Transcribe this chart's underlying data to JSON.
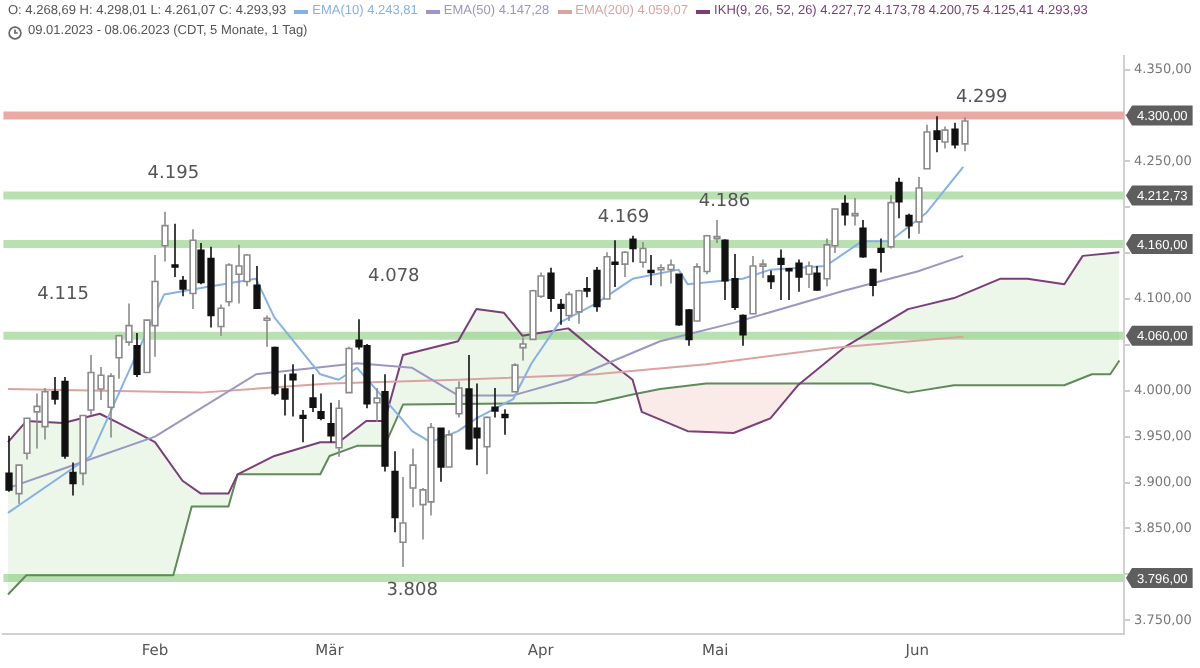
{
  "chart_data": {
    "type": "candlestick",
    "title": "O: 4.268,69 H: 4.298,01 L: 4.261,07 C: 4.293,93",
    "subtitle": "09.01.2023 - 08.06.2023  (CDT, 5 Monate, 1 Tag)",
    "categories": [
      null,
      null,
      null,
      null,
      null,
      null,
      null,
      null,
      null,
      null,
      null,
      null,
      null,
      null,
      null,
      null,
      "Feb",
      null,
      null,
      null,
      null,
      null,
      null,
      null,
      null,
      null,
      null,
      null,
      null,
      null,
      null,
      null,
      null,
      null,
      null,
      "Mär",
      null,
      null,
      null,
      null,
      null,
      null,
      null,
      null,
      null,
      null,
      null,
      null,
      null,
      null,
      null,
      null,
      null,
      null,
      null,
      null,
      null,
      null,
      "Apr",
      null,
      null,
      null,
      null,
      null,
      null,
      null,
      null,
      null,
      null,
      null,
      null,
      null,
      null,
      null,
      null,
      null,
      null,
      "Mai",
      null,
      null,
      null,
      null,
      null,
      null,
      null,
      null,
      null,
      null,
      null,
      null,
      null,
      null,
      null,
      null,
      null,
      null,
      null,
      null,
      null,
      "Jun",
      null,
      null,
      null,
      null,
      null,
      null,
      null,
      null,
      null,
      null,
      null,
      null,
      null,
      null,
      null,
      null,
      null,
      null,
      null,
      null,
      null,
      null
    ],
    "ohlc": [
      [
        3910,
        3951,
        3890,
        3892
      ],
      [
        3888,
        3919,
        3877,
        3919
      ],
      [
        3932,
        3970,
        3925,
        3970
      ],
      [
        3977,
        3997,
        3937,
        3983
      ],
      [
        3961,
        4003,
        3947,
        3999
      ],
      [
        3999,
        4015,
        3985,
        3991
      ],
      [
        4010,
        4015,
        3926,
        3929
      ],
      [
        3911,
        3922,
        3886,
        3899
      ],
      [
        3910,
        3973,
        3897,
        3973
      ],
      [
        3979,
        4039,
        3974,
        4020
      ],
      [
        4002,
        4026,
        3990,
        4017
      ],
      [
        3982,
        4019,
        3949,
        4016
      ],
      [
        4036,
        4061,
        4013,
        4060
      ],
      [
        4053,
        4095,
        4049,
        4071
      ],
      [
        4049,
        4063,
        4015,
        4018
      ],
      [
        4020,
        4077,
        4020,
        4077
      ],
      [
        4071,
        4148,
        4037,
        4119
      ],
      [
        4158,
        4195,
        4141,
        4180
      ],
      [
        4137,
        4182,
        4124,
        4136
      ],
      [
        4120,
        4125,
        4103,
        4111
      ],
      [
        4106,
        4176,
        4089,
        4164
      ],
      [
        4153,
        4161,
        4116,
        4118
      ],
      [
        4144,
        4157,
        4069,
        4082
      ],
      [
        4070,
        4094,
        4060,
        4090
      ],
      [
        4097,
        4139,
        4092,
        4137
      ],
      [
        4127,
        4159,
        4095,
        4136
      ],
      [
        4119,
        4149,
        4114,
        4148
      ],
      [
        4115,
        4136,
        4089,
        4090
      ],
      [
        4077,
        4082,
        4048,
        4079
      ],
      [
        4047,
        4048,
        3995,
        3997
      ],
      [
        4002,
        4018,
        3973,
        3991
      ],
      [
        4018,
        4029,
        3972,
        4012
      ],
      [
        3973,
        3979,
        3944,
        3970
      ],
      [
        3992,
        4018,
        3977,
        3982
      ],
      [
        3977,
        3997,
        3968,
        3970
      ],
      [
        3964,
        3987,
        3944,
        3951
      ],
      [
        3938,
        3990,
        3928,
        3981
      ],
      [
        3998,
        4048,
        3998,
        4046
      ],
      [
        4055,
        4078,
        4045,
        4048
      ],
      [
        4049,
        4051,
        3981,
        3986
      ],
      [
        3987,
        4003,
        3966,
        3992
      ],
      [
        3999,
        4018,
        3912,
        3918
      ],
      [
        3912,
        3934,
        3846,
        3862
      ],
      [
        3835,
        3906,
        3808,
        3856
      ],
      [
        3894,
        3937,
        3873,
        3919
      ],
      [
        3876,
        3894,
        3838,
        3892
      ],
      [
        3879,
        3965,
        3864,
        3960
      ],
      [
        3959,
        3959,
        3901,
        3917
      ],
      [
        3917,
        3957,
        3917,
        3952
      ],
      [
        3975,
        4010,
        3971,
        4003
      ],
      [
        4002,
        4039,
        3936,
        3937
      ],
      [
        3959,
        4008,
        3919,
        3949
      ],
      [
        3939,
        3972,
        3909,
        3971
      ],
      [
        3982,
        4003,
        3971,
        3978
      ],
      [
        3974,
        3980,
        3952,
        3971
      ],
      [
        3999,
        4030,
        3999,
        4028
      ],
      [
        4047,
        4058,
        4033,
        4051
      ],
      [
        4056,
        4110,
        4056,
        4109
      ],
      [
        4103,
        4129,
        4101,
        4125
      ],
      [
        4128,
        4134,
        4086,
        4101
      ],
      [
        4094,
        4100,
        4072,
        4090
      ],
      [
        4082,
        4108,
        4076,
        4105
      ],
      [
        4086,
        4110,
        4073,
        4109
      ],
      [
        4111,
        4124,
        4102,
        4109
      ],
      [
        4131,
        4135,
        4086,
        4092
      ],
      [
        4100,
        4151,
        4100,
        4146
      ],
      [
        4140,
        4164,
        4113,
        4138
      ],
      [
        4138,
        4152,
        4124,
        4151
      ],
      [
        4165,
        4169,
        4140,
        4155
      ],
      [
        4140,
        4162,
        4134,
        4155
      ],
      [
        4131,
        4148,
        4115,
        4130
      ],
      [
        4133,
        4138,
        4114,
        4134
      ],
      [
        4132,
        4143,
        4117,
        4137
      ],
      [
        4127,
        4127,
        4071,
        4072
      ],
      [
        4088,
        4089,
        4049,
        4056
      ],
      [
        4076,
        4139,
        4076,
        4135
      ],
      [
        4130,
        4170,
        4127,
        4169
      ],
      [
        4167,
        4186,
        4161,
        4168
      ],
      [
        4164,
        4165,
        4099,
        4120
      ],
      [
        4122,
        4149,
        4088,
        4091
      ],
      [
        4082,
        4083,
        4049,
        4061
      ],
      [
        4084,
        4147,
        4084,
        4136
      ],
      [
        4136,
        4143,
        4123,
        4138
      ],
      [
        4125,
        4131,
        4111,
        4119
      ],
      [
        4144,
        4154,
        4099,
        4138
      ],
      [
        4133,
        4133,
        4099,
        4131
      ],
      [
        4139,
        4143,
        4108,
        4124
      ],
      [
        4127,
        4141,
        4112,
        4136
      ],
      [
        4128,
        4136,
        4109,
        4110
      ],
      [
        4122,
        4166,
        4114,
        4159
      ],
      [
        4158,
        4198,
        4150,
        4198
      ],
      [
        4204,
        4213,
        4180,
        4192
      ],
      [
        4191,
        4210,
        4180,
        4193
      ],
      [
        4177,
        4186,
        4145,
        4146
      ],
      [
        4132,
        4133,
        4103,
        4115
      ],
      [
        4155,
        4166,
        4129,
        4151
      ],
      [
        4157,
        4213,
        4155,
        4205
      ],
      [
        4227,
        4232,
        4188,
        4206
      ],
      [
        4191,
        4193,
        4166,
        4180
      ],
      [
        4184,
        4233,
        4171,
        4221
      ],
      [
        4242,
        4290,
        4242,
        4282
      ],
      [
        4283,
        4299,
        4260,
        4274
      ],
      [
        4271,
        4288,
        4264,
        4284
      ],
      [
        4285,
        4292,
        4264,
        4268
      ],
      [
        4269,
        4298,
        4261,
        4294
      ],
      null,
      null,
      null,
      null,
      null,
      null,
      null,
      null,
      null,
      null,
      null,
      null,
      null,
      null,
      null,
      null,
      null
    ],
    "series": [
      {
        "name": "EMA(10) 4.243,81",
        "type": "line",
        "color": "#86b1e6",
        "values": [
          3867,
          null,
          null,
          null,
          null,
          null,
          null,
          null,
          null,
          3929,
          null,
          null,
          null,
          null,
          4040,
          null,
          null,
          4105,
          null,
          null,
          null,
          4112,
          null,
          null,
          null,
          null,
          null,
          4122,
          null,
          4080,
          null,
          null,
          null,
          null,
          4018,
          null,
          4012,
          null,
          4025,
          null,
          null,
          3991,
          null,
          null,
          3956,
          null,
          3944,
          null,
          null,
          3956,
          null,
          3970,
          null,
          null,
          null,
          3991,
          null,
          4030,
          null,
          null,
          4074,
          null,
          null,
          null,
          4095,
          null,
          null,
          null,
          4122,
          null,
          null,
          null,
          null,
          4132,
          4116,
          null,
          null,
          null,
          null,
          null,
          4122,
          null,
          null,
          4132,
          null,
          null,
          null,
          null,
          null,
          4136,
          null,
          null,
          null,
          4163,
          null,
          null,
          4163,
          null,
          null,
          null,
          4194,
          null,
          null,
          null,
          4244,
          null,
          null,
          null,
          null,
          null,
          null,
          null,
          null,
          null,
          null,
          null,
          null,
          null,
          null,
          null,
          null,
          null
        ]
      },
      {
        "name": "EMA(50) 4.147,28",
        "type": "line",
        "color": "#9c97c2",
        "values": [
          3894,
          null,
          null,
          null,
          null,
          null,
          3915,
          null,
          null,
          null,
          null,
          null,
          null,
          null,
          null,
          null,
          3950,
          null,
          null,
          null,
          null,
          null,
          null,
          null,
          null,
          null,
          null,
          4018,
          null,
          null,
          null,
          null,
          null,
          null,
          null,
          null,
          null,
          null,
          4030,
          null,
          null,
          null,
          null,
          null,
          4025,
          null,
          null,
          null,
          null,
          3995,
          null,
          null,
          null,
          null,
          null,
          3995,
          null,
          null,
          null,
          null,
          null,
          4012,
          null,
          null,
          null,
          null,
          null,
          null,
          null,
          null,
          null,
          4054,
          null,
          null,
          null,
          null,
          null,
          null,
          null,
          4074,
          null,
          null,
          null,
          null,
          null,
          null,
          null,
          null,
          null,
          null,
          null,
          4109,
          null,
          null,
          null,
          null,
          null,
          null,
          null,
          4130,
          null,
          null,
          null,
          null,
          4147,
          null,
          null,
          null,
          null,
          null,
          null,
          null,
          null,
          null,
          null,
          null,
          null,
          null,
          null,
          null,
          null,
          null
        ]
      },
      {
        "name": "EMA(200) 4.059,07",
        "type": "line",
        "color": "#dba3a0",
        "values": [
          4002,
          null,
          null,
          null,
          null,
          null,
          null,
          null,
          null,
          null,
          null,
          null,
          null,
          null,
          null,
          null,
          null,
          null,
          null,
          null,
          null,
          3998,
          null,
          null,
          null,
          null,
          null,
          null,
          null,
          null,
          null,
          null,
          null,
          null,
          null,
          4008,
          null,
          null,
          null,
          null,
          null,
          null,
          null,
          null,
          null,
          null,
          null,
          null,
          null,
          4012,
          null,
          null,
          null,
          null,
          null,
          null,
          null,
          null,
          null,
          null,
          null,
          null,
          null,
          null,
          4018,
          null,
          null,
          null,
          null,
          null,
          null,
          null,
          null,
          null,
          null,
          null,
          4029,
          null,
          null,
          null,
          null,
          null,
          null,
          null,
          null,
          null,
          null,
          null,
          null,
          null,
          4047,
          null,
          null,
          null,
          null,
          null,
          null,
          null,
          null,
          null,
          null,
          null,
          null,
          null,
          4059,
          null,
          null,
          null,
          null,
          null,
          null,
          null,
          null,
          null,
          null,
          null,
          null,
          null,
          null,
          null,
          null,
          null
        ]
      },
      {
        "name": "IKH(9, 26, 52, 26) 4.227,72 4.173,78 4.200,75 4.125,41 4.293,93",
        "type": "line",
        "color": "#7a3f78",
        "values": [
          3944,
          null,
          3967,
          null,
          null,
          null,
          3965,
          null,
          null,
          null,
          3975,
          null,
          3965,
          null,
          null,
          null,
          3944,
          null,
          null,
          3902,
          null,
          3888,
          null,
          null,
          3888,
          3909,
          null,
          null,
          null,
          3929,
          null,
          null,
          null,
          null,
          3944,
          null,
          3944,
          null,
          null,
          3967,
          null,
          3967,
          null,
          4039,
          null,
          null,
          null,
          null,
          null,
          4054,
          null,
          4089,
          null,
          null,
          4085,
          null,
          4060,
          null,
          null,
          null,
          null,
          4068,
          null,
          null,
          4043,
          null,
          null,
          null,
          4012,
          3977,
          null,
          null,
          null,
          null,
          3956,
          null,
          null,
          null,
          null,
          3954,
          null,
          null,
          null,
          3970,
          null,
          null,
          4006,
          null,
          null,
          null,
          null,
          4047,
          null,
          null,
          null,
          null,
          null,
          null,
          4089,
          null,
          null,
          null,
          null,
          4101,
          null,
          null,
          null,
          null,
          4122,
          null,
          null,
          4122,
          null,
          null,
          null,
          4116,
          null,
          4147,
          null,
          null,
          null,
          4151
        ],
        "upper": [
          3944,
          null,
          3967,
          null,
          null,
          null,
          3965,
          null,
          null,
          null,
          3975,
          null,
          3965,
          null,
          null,
          null,
          3944,
          null,
          3916,
          3902,
          3895,
          3888,
          null,
          null,
          3888,
          3909,
          null,
          null,
          null,
          3929,
          null,
          null,
          null,
          null,
          3944,
          3944,
          3944,
          null,
          3959,
          3967,
          null,
          3967,
          null,
          4039,
          null,
          null,
          null,
          null,
          null,
          4054,
          null,
          4089,
          null,
          null,
          4085,
          null,
          4060,
          null,
          null,
          null,
          null,
          4068,
          null,
          null,
          4043,
          null,
          null,
          null,
          4012,
          3977,
          null,
          3969,
          null,
          null,
          3956,
          null,
          3955,
          null,
          null,
          3954,
          null,
          null,
          null,
          3970,
          null,
          null,
          4006,
          null,
          null,
          null,
          null,
          4047,
          null,
          null,
          4065,
          null,
          null,
          null,
          4089,
          null,
          null,
          null,
          null,
          4101,
          null,
          null,
          null,
          null,
          4122,
          null,
          null,
          4122,
          null,
          null,
          null,
          4116,
          null,
          4147,
          4148,
          null,
          4150,
          4151
        ],
        "lower": [
          3778,
          null,
          3799,
          null,
          null,
          null,
          3799,
          null,
          null,
          null,
          3799,
          null,
          3799,
          null,
          null,
          null,
          3799,
          null,
          3799,
          3836,
          3874,
          3874,
          null,
          null,
          3874,
          3909,
          null,
          null,
          null,
          3909,
          null,
          null,
          null,
          null,
          3909,
          3929,
          3933,
          null,
          3940,
          3940,
          null,
          3940,
          null,
          3985,
          null,
          null,
          null,
          null,
          null,
          3985,
          null,
          3985,
          null,
          null,
          3986,
          null,
          3986,
          null,
          null,
          null,
          null,
          3987,
          null,
          null,
          3987,
          null,
          null,
          null,
          3996,
          3998,
          null,
          4002,
          null,
          null,
          4006,
          null,
          4008,
          null,
          null,
          4008,
          null,
          null,
          null,
          4008,
          null,
          null,
          4008,
          null,
          null,
          null,
          null,
          4008,
          null,
          null,
          4008,
          null,
          null,
          null,
          3998,
          null,
          null,
          null,
          null,
          4006,
          null,
          null,
          null,
          null,
          4006,
          null,
          null,
          4006,
          null,
          null,
          null,
          4006,
          null,
          4014,
          4018,
          null,
          4018,
          4033
        ]
      },
      {
        "type": "line",
        "color": "#5f8a5a",
        "values": [
          3778,
          null,
          3799,
          null,
          null,
          null,
          null,
          null,
          null,
          null,
          null,
          null,
          null,
          null,
          null,
          null,
          null,
          null,
          3799,
          null,
          3874,
          null,
          null,
          null,
          3874,
          3909,
          null,
          null,
          null,
          null,
          null,
          null,
          null,
          null,
          3909,
          3929,
          null,
          null,
          3940,
          null,
          null,
          3940,
          null,
          3985,
          null,
          null,
          null,
          null,
          null,
          null,
          null,
          null,
          null,
          null,
          null,
          null,
          null,
          null,
          null,
          null,
          null,
          null,
          null,
          null,
          3987,
          null,
          null,
          null,
          3996,
          null,
          null,
          4002,
          null,
          null,
          null,
          null,
          4008,
          null,
          null,
          null,
          null,
          null,
          null,
          null,
          null,
          null,
          null,
          null,
          null,
          null,
          null,
          null,
          null,
          null,
          4008,
          null,
          null,
          null,
          3998,
          null,
          null,
          null,
          null,
          4006,
          null,
          null,
          null,
          null,
          null,
          null,
          null,
          null,
          null,
          null,
          null,
          4006,
          null,
          null,
          4018,
          null,
          4018,
          4033
        ]
      }
    ],
    "ylim": [
      3735,
      4365
    ],
    "yticks": [
      {
        "value": 3750,
        "label": "3.750,00"
      },
      {
        "value": 3800,
        "label": null
      },
      {
        "value": 3850,
        "label": "3.850,00"
      },
      {
        "value": 3900,
        "label": "3.900,00"
      },
      {
        "value": 3950,
        "label": "3.950,00"
      },
      {
        "value": 4000,
        "label": "4.000,00"
      },
      {
        "value": 4050,
        "label": null
      },
      {
        "value": 4100,
        "label": "4.100,00"
      },
      {
        "value": 4150,
        "label": null
      },
      {
        "value": 4200,
        "label": null
      },
      {
        "value": 4250,
        "label": "4.250,00"
      },
      {
        "value": 4300,
        "label": null
      },
      {
        "value": 4350,
        "label": "4.350,00"
      }
    ],
    "ref_lines": [
      {
        "axis": "y",
        "value": 4300,
        "label": "4.300,00",
        "color": "#eaa9a4"
      },
      {
        "axis": "y",
        "value": 4212.73,
        "label": "4.212,73",
        "color": "#b9e0b1"
      },
      {
        "axis": "y",
        "value": 4160,
        "label": "4.160,00",
        "color": "#b9e0b1"
      },
      {
        "axis": "y",
        "value": 4060,
        "label": "4.060,00",
        "color": "#b9e0b1"
      },
      {
        "axis": "y",
        "value": 3796,
        "label": "3.796,00",
        "color": "#b9e0b1"
      }
    ],
    "annotations": [
      "4.115",
      {
        "text": "4.195",
        "y": 4195
      },
      "4.078",
      {
        "text": "4.169",
        "y": 4169
      },
      {
        "text": "4.186",
        "y": 4186
      },
      {
        "text": "3.808",
        "y": 3808
      },
      {
        "text": "4.299",
        "y": 4299
      }
    ],
    "legend": "top"
  }
}
